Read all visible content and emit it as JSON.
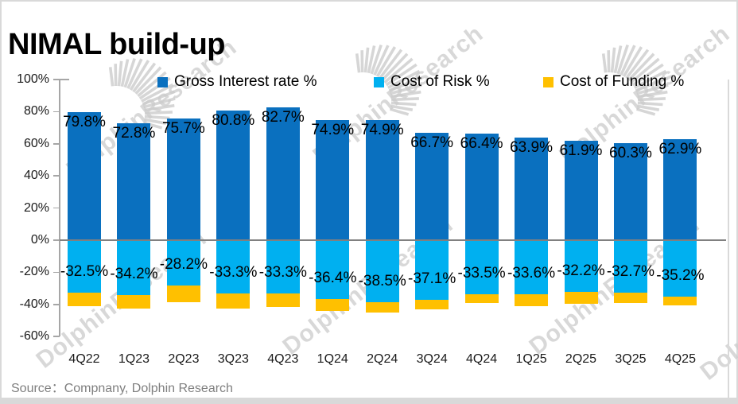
{
  "title": "NIMAL build-up",
  "source": "Source：Compnany, Dolphin Research",
  "watermark": {
    "text": "DolphinResearch"
  },
  "colors": {
    "gross_interest": "#0a70bf",
    "cost_of_risk": "#00b0f0",
    "cost_of_funding": "#ffc000",
    "axis": "#a6a6a6",
    "zero_line": "#808080",
    "frame": "#d9d9d9",
    "source_text": "#7f7f7f"
  },
  "chart_data": {
    "type": "bar",
    "stacked": true,
    "title": "NIMAL build-up",
    "xlabel": "",
    "ylabel": "",
    "ylim": [
      -60,
      100
    ],
    "yticks": [
      "100%",
      "80%",
      "60%",
      "40%",
      "20%",
      "0%",
      "-20%",
      "-40%",
      "-60%"
    ],
    "grid": false,
    "legend_position": "top",
    "categories": [
      "4Q22",
      "1Q23",
      "2Q23",
      "3Q23",
      "4Q23",
      "1Q24",
      "2Q24",
      "3Q24",
      "4Q24",
      "1Q25",
      "2Q25",
      "3Q25",
      "4Q25"
    ],
    "series": [
      {
        "name": "Gross Interest rate %",
        "color": "#0a70bf",
        "values": [
          79.8,
          72.8,
          75.7,
          80.8,
          82.7,
          74.9,
          74.9,
          66.7,
          66.4,
          63.9,
          61.9,
          60.3,
          62.9
        ],
        "data_labels": [
          "79.8%",
          "72.8%",
          "75.7%",
          "80.8%",
          "82.7%",
          "74.9%",
          "74.9%",
          "66.7%",
          "66.4%",
          "63.9%",
          "61.9%",
          "60.3%",
          "62.9%"
        ]
      },
      {
        "name": "Cost of Risk %",
        "color": "#00b0f0",
        "values": [
          -32.5,
          -34.2,
          -28.2,
          -33.3,
          -33.3,
          -36.4,
          -38.5,
          -37.1,
          -33.5,
          -33.6,
          -32.2,
          -32.7,
          -35.2
        ],
        "data_labels": [
          "-32.5%",
          "-34.2%",
          "-28.2%",
          "-33.3%",
          "-33.3%",
          "-36.4%",
          "-38.5%",
          "-37.1%",
          "-33.5%",
          "-33.6%",
          "-32.2%",
          "-32.7%",
          "-35.2%"
        ]
      },
      {
        "name": "Cost of Funding %",
        "color": "#ffc000",
        "values_estimated": true,
        "values": [
          -8.5,
          -8.5,
          -10.5,
          -9.5,
          -8.5,
          -7.5,
          -6.5,
          -6.0,
          -5.5,
          -7.5,
          -7.5,
          -6.5,
          -5.5
        ],
        "data_labels": null
      }
    ]
  }
}
